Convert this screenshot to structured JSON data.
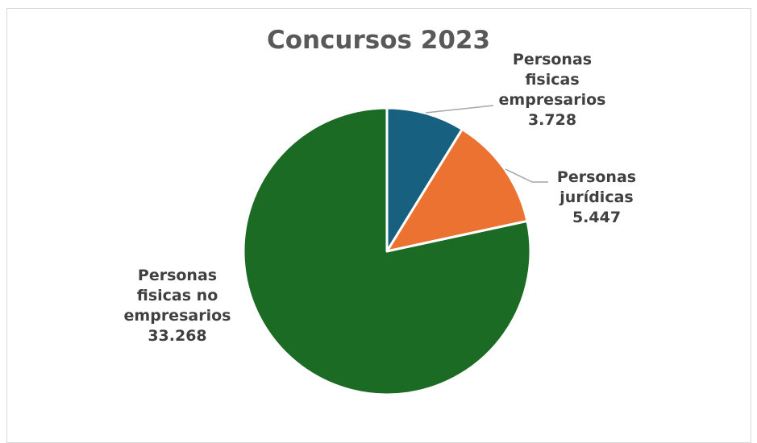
{
  "chart_data": {
    "type": "pie",
    "title": "Concursos 2023",
    "slices": [
      {
        "name": "Personas fisicas empresarios",
        "label_lines": [
          "Personas",
          "fisicas",
          "empresarios"
        ],
        "value": 3728,
        "value_label": "3.728",
        "color": "#17607f"
      },
      {
        "name": "Personas jurídicas",
        "label_lines": [
          "Personas",
          "jurídicas"
        ],
        "value": 5447,
        "value_label": "5.447",
        "color": "#ec7232"
      },
      {
        "name": "Personas fisicas no empresarios",
        "label_lines": [
          "Personas",
          "fisicas no",
          "empresarios"
        ],
        "value": 33268,
        "value_label": "33.268",
        "color": "#1c6b24"
      }
    ],
    "legend": "none",
    "data_labels": "outside-with-leader-lines"
  }
}
